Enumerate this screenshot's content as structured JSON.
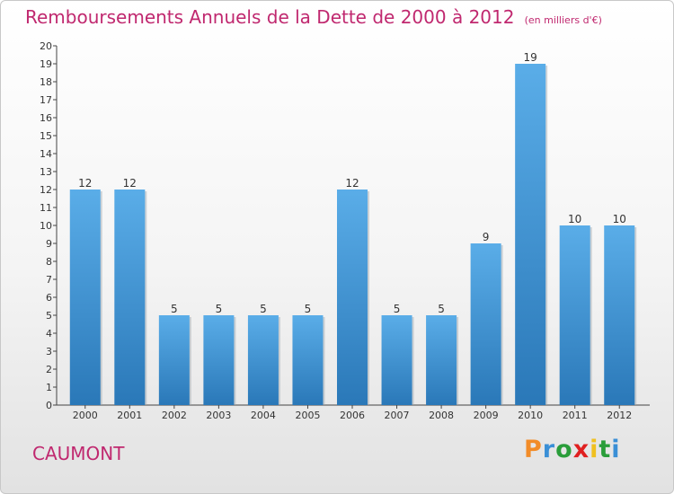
{
  "header": {
    "title": "Remboursements Annuels de la Dette de 2000 à 2012",
    "unit": "(en milliers d'€)"
  },
  "footer": {
    "commune": "CAUMONT",
    "logo": "Proxiti"
  },
  "colors": {
    "title": "#c0286f",
    "bar_light": "#5aade8",
    "bar_dark": "#2a78b8",
    "logo_letters": [
      "#f28c28",
      "#3a8fd6",
      "#2a9d3a",
      "#e02020",
      "#f0c020",
      "#2a9d3a",
      "#3a8fd6"
    ]
  },
  "chart_data": {
    "type": "bar",
    "title": "Remboursements Annuels de la Dette de 2000 à 2012",
    "xlabel": "",
    "ylabel": "",
    "categories": [
      "2000",
      "2001",
      "2002",
      "2003",
      "2004",
      "2005",
      "2006",
      "2007",
      "2008",
      "2009",
      "2010",
      "2011",
      "2012"
    ],
    "values": [
      12,
      12,
      5,
      5,
      5,
      5,
      12,
      5,
      5,
      9,
      19,
      10,
      10
    ],
    "ylim": [
      0,
      20
    ],
    "yticks": [
      0,
      1,
      2,
      3,
      4,
      5,
      6,
      7,
      8,
      9,
      10,
      11,
      12,
      13,
      14,
      15,
      16,
      17,
      18,
      19,
      20
    ],
    "grid": false,
    "legend": "none"
  }
}
